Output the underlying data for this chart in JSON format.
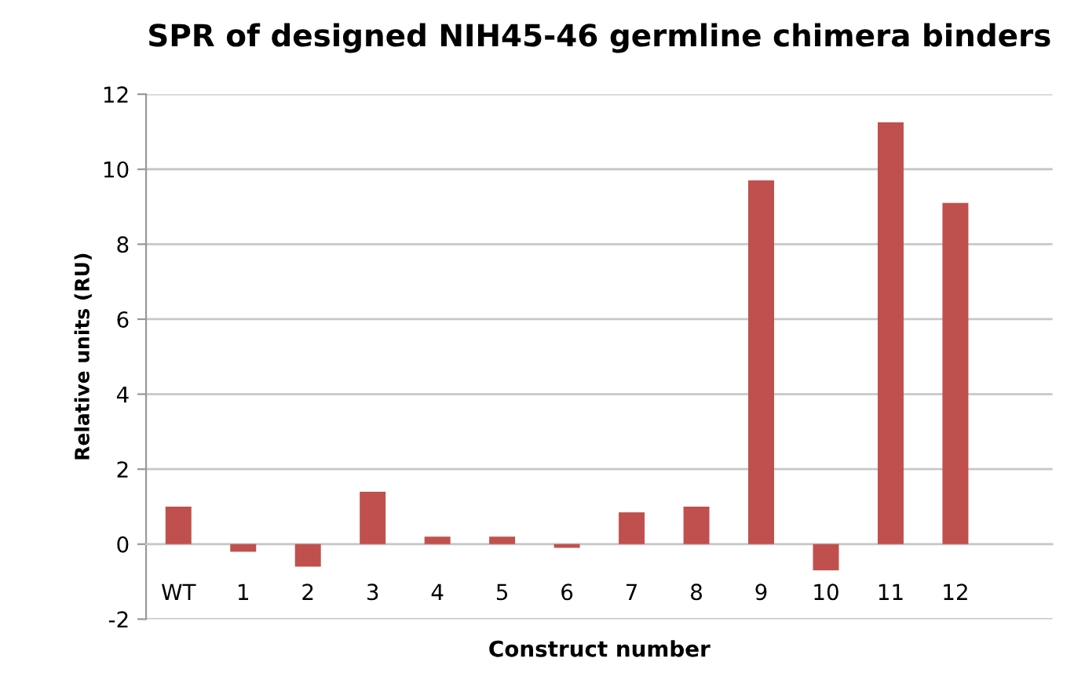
{
  "chart_data": {
    "type": "bar",
    "title": "SPR of designed NIH45-46 germline chimera binders",
    "xlabel": "Construct number",
    "ylabel": "Relative units (RU)",
    "categories": [
      "WT",
      "1",
      "2",
      "3",
      "4",
      "5",
      "6",
      "7",
      "8",
      "9",
      "10",
      "11",
      "12"
    ],
    "values": [
      1.0,
      -0.2,
      -0.6,
      1.4,
      0.2,
      0.2,
      -0.1,
      0.85,
      1.0,
      9.7,
      -0.7,
      11.25,
      9.1
    ],
    "color": "#c0504d",
    "ylim": [
      -2,
      12
    ],
    "yticks": [
      -2,
      0,
      2,
      4,
      6,
      8,
      10,
      12
    ],
    "grid": "y",
    "legend": false
  }
}
